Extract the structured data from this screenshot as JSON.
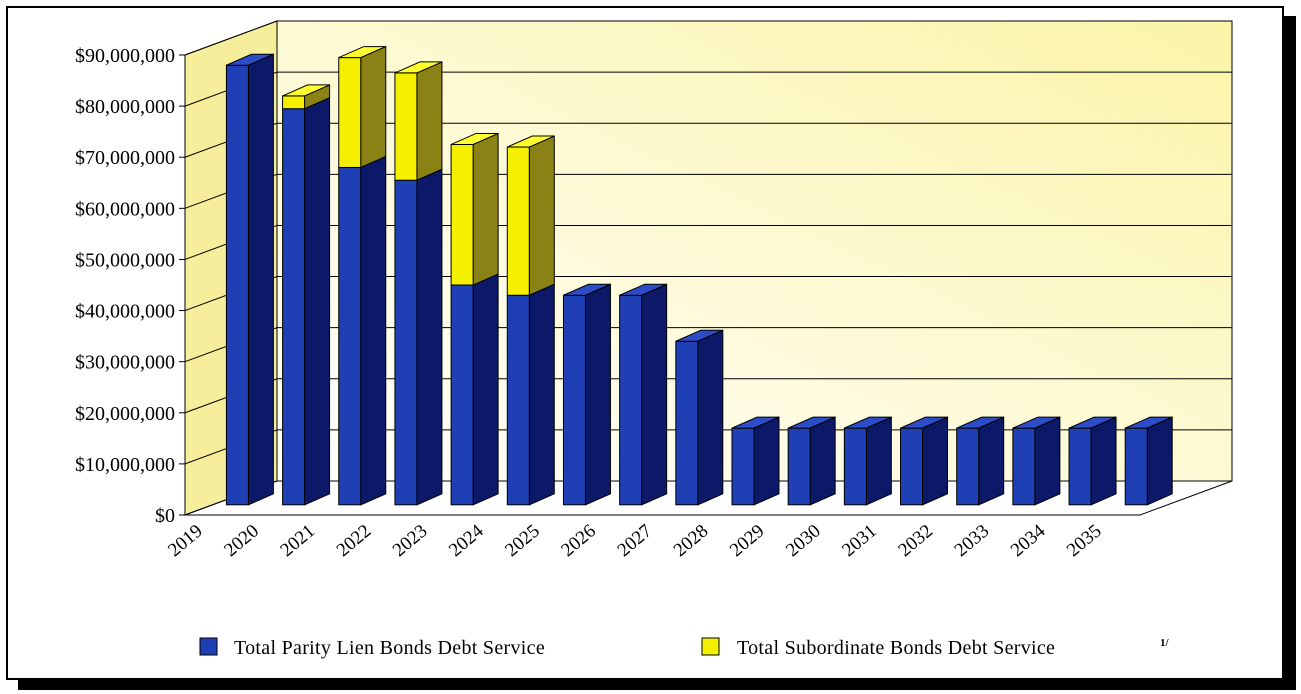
{
  "chart_data": {
    "type": "bar",
    "stacked": true,
    "three_d": true,
    "title": "",
    "xlabel": "",
    "ylabel": "",
    "ylim": [
      0,
      90000000
    ],
    "grid": true,
    "legend_position": "bottom",
    "categories": [
      "2019",
      "2020",
      "2021",
      "2022",
      "2023",
      "2024",
      "2025",
      "2026",
      "2027",
      "2028",
      "2029",
      "2030",
      "2031",
      "2032",
      "2033",
      "2034",
      "2035"
    ],
    "y_tick_labels": [
      "$0",
      "$10,000,000",
      "$20,000,000",
      "$30,000,000",
      "$40,000,000",
      "$50,000,000",
      "$60,000,000",
      "$70,000,000",
      "$80,000,000",
      "$90,000,000"
    ],
    "series": [
      {
        "name": "Total Parity Lien Bonds Debt Service",
        "color": "#1f3fb4",
        "values": [
          86000000,
          77500000,
          66000000,
          63500000,
          43000000,
          41000000,
          41000000,
          41000000,
          32000000,
          15000000,
          15000000,
          15000000,
          15000000,
          15000000,
          15000000,
          15000000,
          15000000
        ]
      },
      {
        "name": "Total Subordinate Bonds Debt Service",
        "note": "1/",
        "color": "#f5f000",
        "values": [
          0,
          2500000,
          21500000,
          21000000,
          27500000,
          29000000,
          0,
          0,
          0,
          0,
          0,
          0,
          0,
          0,
          0,
          0,
          0
        ]
      }
    ]
  }
}
